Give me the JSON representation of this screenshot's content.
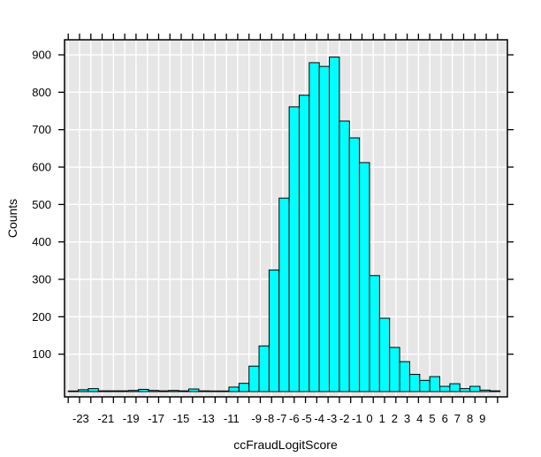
{
  "figure": {
    "title": "",
    "xlabel": "ccFraudLogitScore",
    "ylabel": "Counts"
  },
  "colors": {
    "bar_fill": "#00ffff",
    "bar_stroke": "#000000",
    "panel_bg": "#e6e6e6",
    "grid": "#ffffff",
    "border": "#000000",
    "tick": "#000000",
    "background": "#ffffff",
    "text": "#000000"
  },
  "chart_data": {
    "type": "bar",
    "subtype": "histogram",
    "title": "",
    "xlabel": "ccFraudLogitScore",
    "ylabel": "Counts",
    "bin_start": -24.0,
    "bin_width": 0.8,
    "counts": [
      0,
      5,
      8,
      2,
      2,
      2,
      3,
      6,
      3,
      2,
      3,
      2,
      7,
      2,
      0,
      0,
      12,
      22,
      68,
      122,
      325,
      517,
      761,
      792,
      879,
      869,
      894,
      723,
      678,
      612,
      310,
      196,
      118,
      80,
      46,
      30,
      40,
      14,
      21,
      8,
      14,
      4,
      2
    ],
    "x_tick_values": [
      -23,
      -21,
      -19,
      -17,
      -15,
      -13,
      -11,
      -9,
      -8,
      -7,
      -6,
      -5,
      -4,
      -3,
      -2,
      -1,
      0,
      1,
      2,
      3,
      4,
      5,
      6,
      7,
      8,
      9
    ],
    "x_tick_labels": [
      "-23",
      "-21",
      "-19",
      "-17",
      "-15",
      "-13",
      "-11",
      "-9",
      "-8",
      "-7",
      "-6",
      "-5",
      "-4",
      "-3",
      "-2",
      "-1",
      "0",
      "1",
      "2",
      "3",
      "4",
      "5",
      "6",
      "7",
      "8",
      "9"
    ],
    "y_tick_values": [
      100,
      200,
      300,
      400,
      500,
      600,
      700,
      800,
      900
    ],
    "y_tick_labels": [
      "100",
      "200",
      "300",
      "400",
      "500",
      "600",
      "700",
      "800",
      "900"
    ],
    "xlim": [
      -24.3,
      11.0
    ],
    "ylim": [
      0,
      940
    ],
    "grid": "on",
    "legend": "none",
    "minor_tick_step": 0.9,
    "minor_tick_origin": -24.0,
    "minor_tick_count": 39
  }
}
